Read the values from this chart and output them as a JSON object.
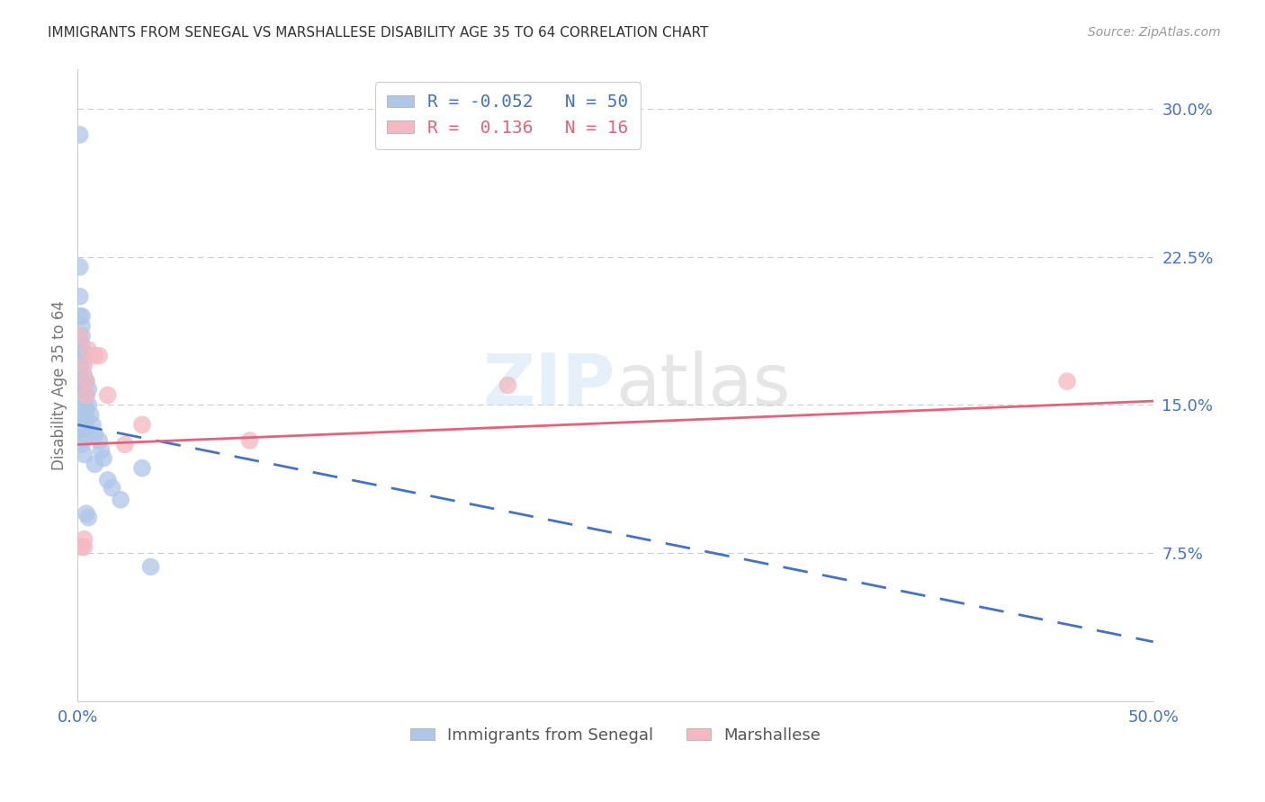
{
  "title": "IMMIGRANTS FROM SENEGAL VS MARSHALLESE DISABILITY AGE 35 TO 64 CORRELATION CHART",
  "source": "Source: ZipAtlas.com",
  "ylabel": "Disability Age 35 to 64",
  "ylabel_right_ticks": [
    "30.0%",
    "22.5%",
    "15.0%",
    "7.5%"
  ],
  "ylabel_right_vals": [
    0.3,
    0.225,
    0.15,
    0.075
  ],
  "xlim": [
    0.0,
    0.5
  ],
  "ylim": [
    0.0,
    0.32
  ],
  "watermark": "ZIPatlas",
  "senegal_x": [
    0.001,
    0.001,
    0.001,
    0.001,
    0.001,
    0.001,
    0.001,
    0.001,
    0.001,
    0.002,
    0.002,
    0.002,
    0.002,
    0.002,
    0.002,
    0.002,
    0.002,
    0.002,
    0.002,
    0.002,
    0.002,
    0.003,
    0.003,
    0.003,
    0.003,
    0.003,
    0.003,
    0.003,
    0.003,
    0.004,
    0.004,
    0.004,
    0.004,
    0.004,
    0.004,
    0.005,
    0.005,
    0.005,
    0.006,
    0.007,
    0.008,
    0.008,
    0.01,
    0.011,
    0.012,
    0.014,
    0.016,
    0.02,
    0.03,
    0.034
  ],
  "senegal_y": [
    0.287,
    0.22,
    0.205,
    0.195,
    0.183,
    0.178,
    0.17,
    0.165,
    0.158,
    0.195,
    0.19,
    0.185,
    0.18,
    0.175,
    0.17,
    0.163,
    0.158,
    0.15,
    0.145,
    0.138,
    0.13,
    0.175,
    0.165,
    0.16,
    0.152,
    0.145,
    0.14,
    0.133,
    0.125,
    0.162,
    0.155,
    0.148,
    0.143,
    0.138,
    0.095,
    0.158,
    0.15,
    0.093,
    0.145,
    0.14,
    0.135,
    0.12,
    0.132,
    0.127,
    0.123,
    0.112,
    0.108,
    0.102,
    0.118,
    0.068
  ],
  "marshallese_x": [
    0.001,
    0.002,
    0.003,
    0.003,
    0.003,
    0.004,
    0.004,
    0.005,
    0.008,
    0.01,
    0.014,
    0.022,
    0.03,
    0.08,
    0.2,
    0.46
  ],
  "marshallese_y": [
    0.185,
    0.078,
    0.17,
    0.082,
    0.078,
    0.162,
    0.155,
    0.178,
    0.175,
    0.175,
    0.155,
    0.13,
    0.14,
    0.132,
    0.16,
    0.162
  ],
  "senegal_line_x0": 0.0,
  "senegal_line_y0": 0.14,
  "senegal_line_x1": 0.5,
  "senegal_line_y1": 0.03,
  "marshallese_line_x0": 0.0,
  "marshallese_line_y0": 0.13,
  "marshallese_line_x1": 0.5,
  "marshallese_line_y1": 0.152,
  "senegal_color": "#aec6e8",
  "marshallese_color": "#f4b8c1",
  "senegal_line_color": "#4472c4",
  "marshallese_line_color": "#e8607a",
  "grid_color": "#cccccc",
  "background_color": "#ffffff"
}
